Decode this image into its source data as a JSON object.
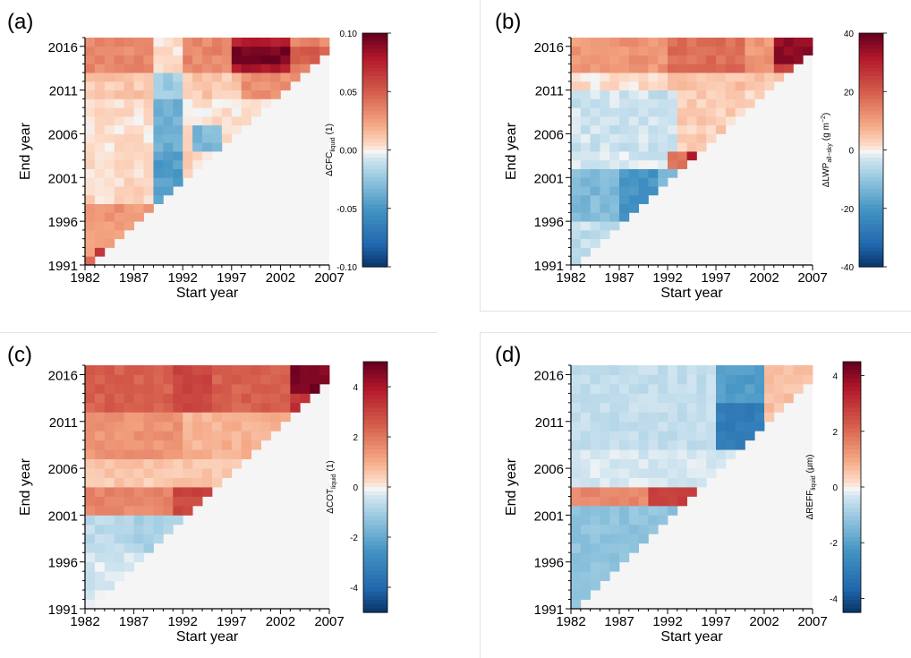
{
  "chart_data": [
    {
      "type": "heatmap",
      "panel_label": "(a)",
      "xlabel": "Start year",
      "ylabel": "End year",
      "x_ticks": [
        "1982",
        "1987",
        "1992",
        "1997",
        "2002",
        "2007"
      ],
      "y_ticks": [
        "1991",
        "1996",
        "2001",
        "2006",
        "2011",
        "2016"
      ],
      "colorbar_label": "ΔCFC",
      "colorbar_sub": "liquid",
      "colorbar_unit": "(1)",
      "colorbar_ticks": [
        "0.10",
        "0.05",
        "0.00",
        "-0.05",
        "-0.10"
      ],
      "vmin": -0.1,
      "vmax": 0.1,
      "colormap": "RdBu_r"
    },
    {
      "type": "heatmap",
      "panel_label": "(b)",
      "xlabel": "Start year",
      "ylabel": "End year",
      "x_ticks": [
        "1982",
        "1987",
        "1992",
        "1997",
        "2002",
        "2007"
      ],
      "y_ticks": [
        "1991",
        "1996",
        "2001",
        "2006",
        "2011",
        "2016"
      ],
      "colorbar_label": "ΔLWP",
      "colorbar_sub": "all−sky",
      "colorbar_unit": "(g m",
      "colorbar_sup": "−2",
      "colorbar_unit_end": ")",
      "colorbar_ticks": [
        "40",
        "20",
        "0",
        "-20",
        "-40"
      ],
      "vmin": -40,
      "vmax": 40,
      "colormap": "RdBu_r"
    },
    {
      "type": "heatmap",
      "panel_label": "(c)",
      "xlabel": "Start year",
      "ylabel": "End year",
      "x_ticks": [
        "1982",
        "1987",
        "1992",
        "1997",
        "2002",
        "2007"
      ],
      "y_ticks": [
        "1991",
        "1996",
        "2001",
        "2006",
        "2011",
        "2016"
      ],
      "colorbar_label": "ΔCOT",
      "colorbar_sub": "liquid",
      "colorbar_unit": "(1)",
      "colorbar_ticks": [
        "4",
        "2",
        "0",
        "-2",
        "-4"
      ],
      "vmin": -5,
      "vmax": 5,
      "colormap": "RdBu_r"
    },
    {
      "type": "heatmap",
      "panel_label": "(d)",
      "xlabel": "Start year",
      "ylabel": "End year",
      "x_ticks": [
        "1982",
        "1987",
        "1992",
        "1997",
        "2002",
        "2007"
      ],
      "y_ticks": [
        "1991",
        "1996",
        "2001",
        "2006",
        "2011",
        "2016"
      ],
      "colorbar_label": "ΔREFF",
      "colorbar_sub": "liquid",
      "colorbar_unit": "(μm)",
      "colorbar_ticks": [
        "4",
        "2",
        "0",
        "-2",
        "-4"
      ],
      "vmin": -4.5,
      "vmax": 4.5,
      "colormap": "RdBu_r"
    }
  ]
}
